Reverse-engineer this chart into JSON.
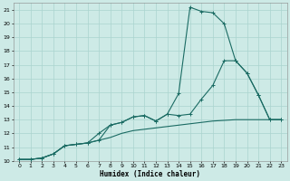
{
  "xlabel": "Humidex (Indice chaleur)",
  "background_color": "#cdeae6",
  "grid_color": "#aad4cf",
  "line_color": "#1a6b63",
  "xlim": [
    -0.5,
    23.5
  ],
  "ylim": [
    10,
    21.5
  ],
  "xticks": [
    0,
    1,
    2,
    3,
    4,
    5,
    6,
    7,
    8,
    9,
    10,
    11,
    12,
    13,
    14,
    15,
    16,
    17,
    18,
    19,
    20,
    21,
    22,
    23
  ],
  "yticks": [
    10,
    11,
    12,
    13,
    14,
    15,
    16,
    17,
    18,
    19,
    20,
    21
  ],
  "s1_x": [
    0,
    1,
    2,
    3,
    4,
    5,
    6,
    7,
    8,
    9,
    10,
    11,
    12,
    13,
    14,
    15,
    16,
    17,
    18,
    19,
    20,
    21,
    22,
    23
  ],
  "s1_y": [
    10.1,
    10.1,
    10.2,
    10.5,
    11.1,
    11.2,
    11.3,
    11.5,
    12.6,
    12.8,
    13.2,
    13.3,
    12.9,
    13.4,
    14.9,
    21.2,
    20.9,
    20.8,
    20.0,
    17.3,
    16.4,
    14.8,
    13.0,
    13.0
  ],
  "s2_x": [
    0,
    1,
    2,
    3,
    4,
    5,
    6,
    7,
    8,
    9,
    10,
    11,
    12,
    13,
    14,
    15,
    16,
    17,
    18,
    19,
    20,
    21,
    22,
    23
  ],
  "s2_y": [
    10.1,
    10.1,
    10.2,
    10.5,
    11.1,
    11.2,
    11.3,
    12.0,
    12.6,
    12.8,
    13.2,
    13.3,
    12.9,
    13.4,
    13.3,
    13.4,
    14.5,
    15.5,
    17.3,
    17.3,
    16.4,
    14.8,
    13.0,
    13.0
  ],
  "s3_x": [
    0,
    1,
    2,
    3,
    4,
    5,
    6,
    7,
    8,
    9,
    10,
    11,
    12,
    13,
    14,
    15,
    16,
    17,
    18,
    19,
    20,
    21,
    22,
    23
  ],
  "s3_y": [
    10.1,
    10.1,
    10.2,
    10.5,
    11.1,
    11.2,
    11.3,
    11.5,
    11.7,
    12.0,
    12.2,
    12.3,
    12.4,
    12.5,
    12.6,
    12.7,
    12.8,
    12.9,
    12.95,
    13.0,
    13.0,
    13.0,
    13.0,
    13.0
  ]
}
